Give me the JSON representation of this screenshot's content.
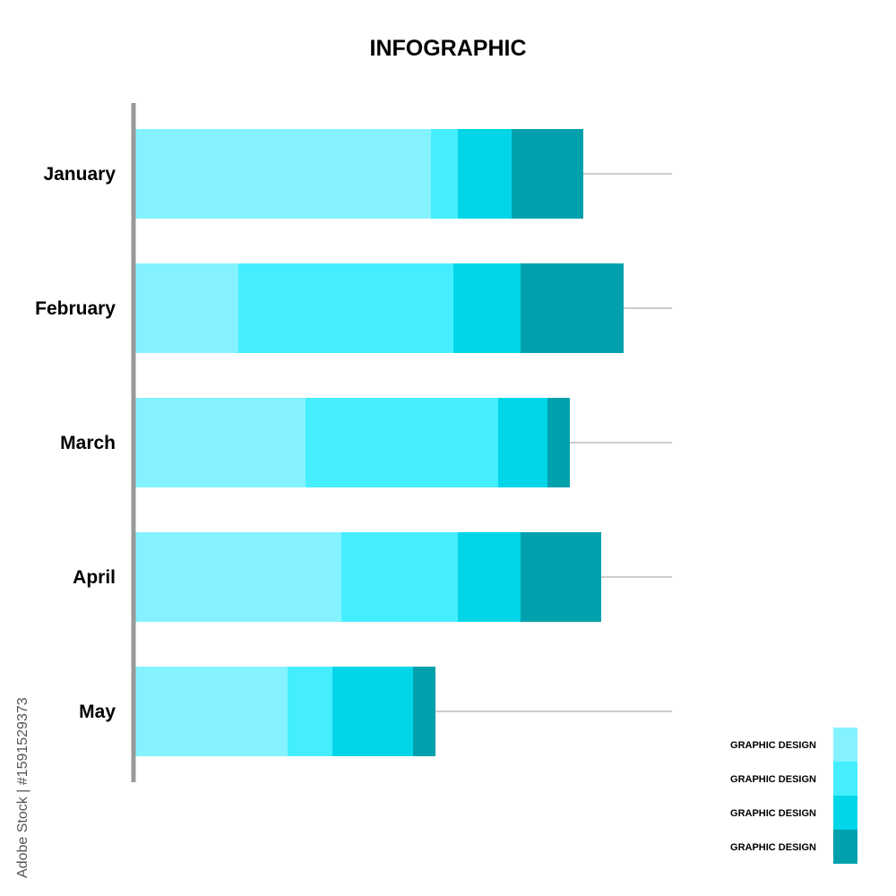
{
  "chart_data": {
    "type": "bar",
    "orientation": "horizontal",
    "stacked": true,
    "title": "INFOGRAPHIC",
    "categories": [
      "January",
      "February",
      "March",
      "April",
      "May"
    ],
    "series": [
      {
        "name": "GRAPHIC DESIGN",
        "color": "#84F3FF",
        "values": [
          66,
          23,
          38,
          46,
          34
        ]
      },
      {
        "name": "GRAPHIC DESIGN",
        "color": "#45EEFF",
        "values": [
          6,
          48,
          43,
          26,
          10
        ]
      },
      {
        "name": "GRAPHIC DESIGN",
        "color": "#00D6E8",
        "values": [
          12,
          15,
          11,
          14,
          18
        ]
      },
      {
        "name": "GRAPHIC DESIGN",
        "color": "#00A1AD",
        "values": [
          16,
          23,
          5,
          18,
          5
        ]
      }
    ],
    "xlim": [
      0,
      120
    ],
    "grid": false,
    "legend_position": "bottom-right",
    "leader_lines": true
  },
  "watermark": {
    "text": "Adobe Stock | #1591529373"
  },
  "colors": {
    "axis": "#999999",
    "leader_line": "#BBBBBB",
    "background": "#FFFFFF"
  }
}
